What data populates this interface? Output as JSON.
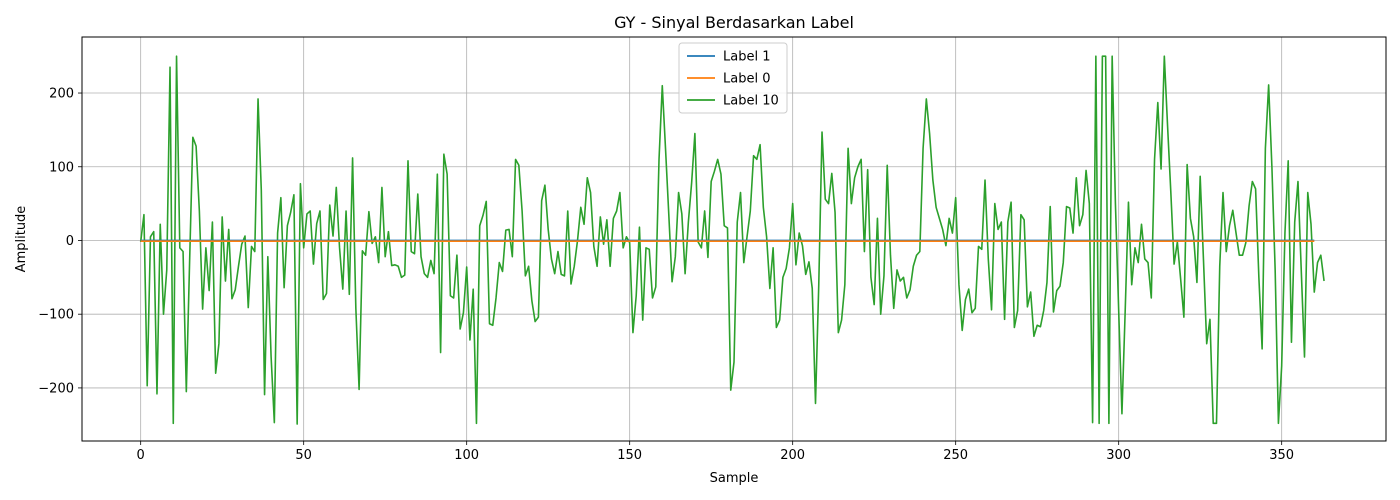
{
  "chart_data": {
    "type": "line",
    "title": "GY - Sinyal Berdasarkan Label",
    "xlabel": "Sample",
    "ylabel": "Amplitude",
    "xlim": [
      -18,
      382
    ],
    "ylim": [
      -272,
      276
    ],
    "xticks": [
      0,
      50,
      100,
      150,
      200,
      250,
      300,
      350
    ],
    "yticks": [
      -200,
      -100,
      0,
      100,
      200
    ],
    "xtick_labels": [
      "0",
      "50",
      "100",
      "150",
      "200",
      "250",
      "300",
      "350"
    ],
    "ytick_labels": [
      "−200",
      "−100",
      "0",
      "100",
      "200"
    ],
    "grid": true,
    "legend_position": "top-center",
    "series": [
      {
        "name": "Label 1",
        "color": "#1f77b4",
        "x": [
          0,
          360
        ],
        "y": [
          0,
          0
        ]
      },
      {
        "name": "Label 0",
        "color": "#ff7f0e",
        "x": [
          0,
          360
        ],
        "y": [
          -1,
          -1
        ]
      },
      {
        "name": "Label 10",
        "color": "#2ca02c",
        "x": [
          0,
          1,
          2,
          3,
          4,
          5,
          6,
          7,
          8,
          9,
          10,
          11,
          12,
          13,
          14,
          15,
          16,
          17,
          18,
          19,
          20,
          21,
          22,
          23,
          24,
          25,
          26,
          27,
          28,
          29,
          30,
          31,
          32,
          33,
          34,
          35,
          36,
          37,
          38,
          39,
          40,
          41,
          42,
          43,
          44,
          45,
          46,
          47,
          48,
          49,
          50,
          51,
          52,
          53,
          54,
          55,
          56,
          57,
          58,
          59,
          60,
          61,
          62,
          63,
          64,
          65,
          66,
          67,
          68,
          69,
          70,
          71,
          72,
          73,
          74,
          75,
          76,
          77,
          78,
          79,
          80,
          81,
          82,
          83,
          84,
          85,
          86,
          87,
          88,
          89,
          90,
          91,
          92,
          93,
          94,
          95,
          96,
          97,
          98,
          99,
          100,
          101,
          102,
          103,
          104,
          105,
          106,
          107,
          108,
          109,
          110,
          111,
          112,
          113,
          114,
          115,
          116,
          117,
          118,
          119,
          120,
          121,
          122,
          123,
          124,
          125,
          126,
          127,
          128,
          129,
          130,
          131,
          132,
          133,
          134,
          135,
          136,
          137,
          138,
          139,
          140,
          141,
          142,
          143,
          144,
          145,
          146,
          147,
          148,
          149,
          150,
          151,
          152,
          153,
          154,
          155,
          156,
          157,
          158,
          159,
          160,
          161,
          162,
          163,
          164,
          165,
          166,
          167,
          168,
          169,
          170,
          171,
          172,
          173,
          174,
          175,
          176,
          177,
          178,
          179,
          180,
          181,
          182,
          183,
          184,
          185,
          186,
          187,
          188,
          189,
          190,
          191,
          192,
          193,
          194,
          195,
          196,
          197,
          198,
          199,
          200,
          201,
          202,
          203,
          204,
          205,
          206,
          207,
          208,
          209,
          210,
          211,
          212,
          213,
          214,
          215,
          216,
          217,
          218,
          219,
          220,
          221,
          222,
          223,
          224,
          225,
          226,
          227,
          228,
          229,
          230,
          231,
          232,
          233,
          234,
          235,
          236,
          237,
          238,
          239,
          240,
          241,
          242,
          243,
          244,
          245,
          246,
          247,
          248,
          249,
          250,
          251,
          252,
          253,
          254,
          255,
          256,
          257,
          258,
          259,
          260,
          261,
          262,
          263,
          264,
          265,
          266,
          267,
          268,
          269,
          270,
          271,
          272,
          273,
          274,
          275,
          276,
          277,
          278,
          279,
          280,
          281,
          282,
          283,
          284,
          285,
          286,
          287,
          288,
          289,
          290,
          291,
          292,
          293,
          294,
          295,
          296,
          297,
          298,
          299,
          300,
          301,
          302,
          303,
          304,
          305,
          306,
          307,
          308,
          309,
          310,
          311,
          312,
          313,
          314,
          315,
          316,
          317,
          318,
          319,
          320,
          321,
          322,
          323,
          324,
          325,
          326,
          327,
          328,
          329,
          330,
          331,
          332,
          333,
          334,
          335,
          336,
          337,
          338,
          339,
          340,
          341,
          342,
          343,
          344,
          345,
          346,
          347,
          348,
          349,
          350,
          351,
          352,
          353,
          354,
          355,
          356,
          357,
          358,
          359,
          360,
          361,
          362,
          363
        ],
        "y": [
          -2,
          35,
          -197,
          5,
          12,
          -208,
          22,
          -100,
          -40,
          235,
          -248,
          250,
          -10,
          -15,
          -205,
          -30,
          140,
          128,
          40,
          -93,
          -10,
          -68,
          25,
          -180,
          -140,
          32,
          -55,
          15,
          -79,
          -67,
          -35,
          -5,
          6,
          -91,
          -8,
          -15,
          192,
          68,
          -209,
          -22,
          -157,
          -247,
          10,
          58,
          -64,
          20,
          38,
          62,
          -249,
          77,
          -10,
          36,
          40,
          -32,
          23,
          40,
          -80,
          -72,
          48,
          6,
          72,
          -10,
          -66,
          40,
          -73,
          112,
          -92,
          -202,
          -14,
          -20,
          39,
          -4,
          5,
          -30,
          72,
          -22,
          12,
          -34,
          -33,
          -35,
          -50,
          -47,
          108,
          -15,
          -18,
          63,
          -22,
          -45,
          -50,
          -27,
          -45,
          90,
          -152,
          117,
          90,
          -75,
          -78,
          -20,
          -120,
          -98,
          -36,
          -135,
          -66,
          -248,
          20,
          34,
          53,
          -113,
          -115,
          -78,
          -30,
          -42,
          14,
          15,
          -22,
          110,
          102,
          40,
          -48,
          -35,
          -82,
          -110,
          -104,
          54,
          75,
          15,
          -25,
          -45,
          -15,
          -46,
          -48,
          40,
          -59,
          -35,
          0,
          45,
          22,
          85,
          65,
          -8,
          -35,
          32,
          -5,
          28,
          -35,
          30,
          40,
          65,
          -10,
          5,
          -3,
          -125,
          -75,
          18,
          -108,
          -10,
          -12,
          -78,
          -63,
          110,
          210,
          124,
          35,
          -56,
          -22,
          65,
          36,
          -45,
          25,
          78,
          145,
          -2,
          -10,
          40,
          -23,
          80,
          94,
          110,
          90,
          20,
          17,
          -203,
          -165,
          25,
          65,
          -30,
          5,
          40,
          115,
          110,
          130,
          45,
          5,
          -65,
          -10,
          -118,
          -108,
          -50,
          -38,
          -10,
          50,
          -33,
          10,
          -7,
          -46,
          -29,
          -65,
          -221,
          -60,
          147,
          56,
          50,
          91,
          38,
          -125,
          -108,
          -60,
          125,
          50,
          85,
          100,
          110,
          -15,
          96,
          -50,
          -87,
          30,
          -100,
          -48,
          102,
          -20,
          -92,
          -40,
          -55,
          -50,
          -78,
          -67,
          -35,
          -20,
          -15,
          125,
          192,
          145,
          82,
          45,
          30,
          15,
          -7,
          30,
          10,
          58,
          -60,
          -122,
          -80,
          -66,
          -98,
          -92,
          -8,
          -12,
          82,
          -25,
          -94,
          50,
          15,
          25,
          -107,
          25,
          52,
          -118,
          -95,
          35,
          28,
          -90,
          -70,
          -130,
          -115,
          -117,
          -95,
          -57,
          46,
          -97,
          -68,
          -62,
          -30,
          46,
          44,
          10,
          85,
          20,
          35,
          95,
          50,
          -247,
          250,
          -248,
          250,
          250,
          -248,
          250,
          50,
          -95,
          -235,
          -95,
          52,
          -60,
          -10,
          -30,
          22,
          -25,
          -30,
          -78,
          110,
          187,
          97,
          250,
          155,
          65,
          -32,
          -2,
          -52,
          -104,
          103,
          30,
          5,
          -57,
          87,
          -25,
          -140,
          -107,
          -248,
          -248,
          -35,
          65,
          -15,
          20,
          41,
          10,
          -20,
          -20,
          -3,
          47,
          80,
          70,
          -50,
          -147,
          125,
          211,
          100,
          -40,
          -248,
          -170,
          10,
          108,
          -138,
          25,
          80,
          -40,
          -158,
          65,
          22,
          -70,
          -30,
          -20,
          -55
        ]
      }
    ]
  }
}
